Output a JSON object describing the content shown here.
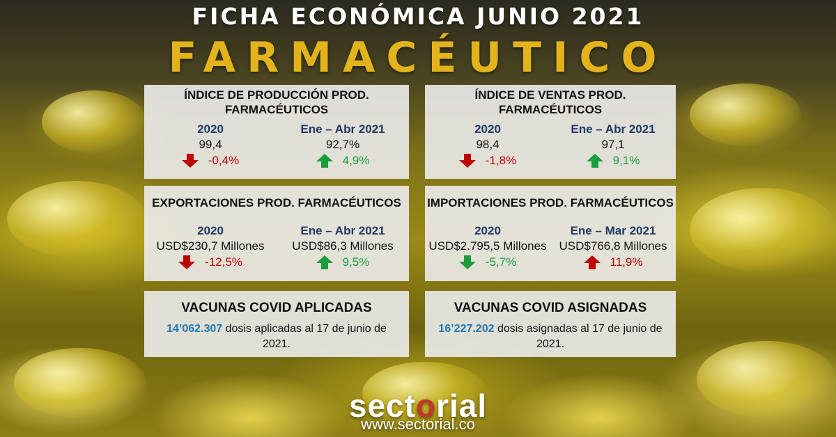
{
  "header": {
    "title": "FICHA ECONÓMICA JUNIO 2021",
    "subtitle": "FARMACÉUTICO"
  },
  "colors": {
    "accent_gold": "#e3b31c",
    "period_blue": "#1f3864",
    "number_blue": "#1f78b4",
    "down_red": "#c00000",
    "up_green": "#1a9d3c"
  },
  "cards": {
    "produccion": {
      "title_line1": "ÍNDICE DE PRODUCCIÓN PROD.",
      "title_line2": "FARMACÉUTICOS",
      "left": {
        "period": "2020",
        "value": "99,4",
        "change": "-0,4%",
        "direction": "down"
      },
      "right": {
        "period": "Ene – Abr 2021",
        "value": "92,7%",
        "change": "4,9%",
        "direction": "up"
      }
    },
    "ventas": {
      "title_line1": "ÍNDICE DE VENTAS PROD.",
      "title_line2": "FARMACÉUTICOS",
      "left": {
        "period": "2020",
        "value": "98,4",
        "change": "-1,8%",
        "direction": "down"
      },
      "right": {
        "period": "Ene – Abr 2021",
        "value": "97,1",
        "change": "9,1%",
        "direction": "up"
      }
    },
    "exportaciones": {
      "title": "EXPORTACIONES PROD. FARMACÉUTICOS",
      "left": {
        "period": "2020",
        "value": "USD$230,7 Millones",
        "change": "-12,5%",
        "direction": "down"
      },
      "right": {
        "period": "Ene – Abr 2021",
        "value": "USD$86,3 Millones",
        "change": "9,5%",
        "direction": "up"
      }
    },
    "importaciones": {
      "title": "IMPORTACIONES PROD. FARMACÉUTICOS",
      "left": {
        "period": "2020",
        "value": "USD$2.795,5 Millones",
        "change": "-5,7%",
        "direction": "down-green"
      },
      "right": {
        "period": "Ene – Mar 2021",
        "value": "USD$766,8 Millones",
        "change": "11,9%",
        "direction": "up-red"
      }
    },
    "vacunas_aplicadas": {
      "title": "VACUNAS COVID APLICADAS",
      "number": "14’062.307",
      "text": " dosis aplicadas al 17 de junio de 2021."
    },
    "vacunas_asignadas": {
      "title": "VACUNAS COVID ASIGNADAS",
      "number": "16’227.202",
      "text": " dosis asignadas al 17 de junio de 2021."
    }
  },
  "footer": {
    "logo_part1": "sect",
    "logo_accent": "o",
    "logo_part2": "rial",
    "url": "www.sectorial.co"
  }
}
